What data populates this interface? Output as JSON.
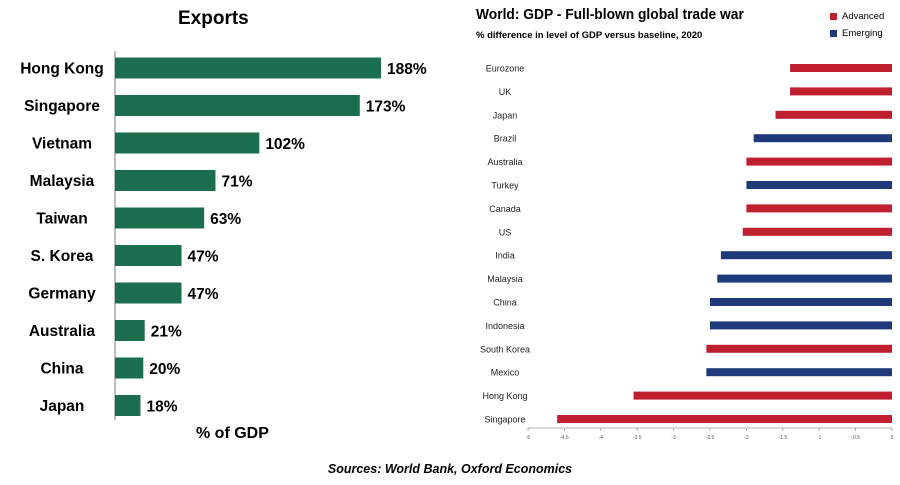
{
  "chart_data": [
    {
      "type": "bar",
      "orientation": "horizontal",
      "title": "Exports",
      "xlabel": "% of GDP",
      "ylabel": "",
      "categories": [
        "Hong Kong",
        "Singapore",
        "Vietnam",
        "Malaysia",
        "Taiwan",
        "S. Korea",
        "Germany",
        "Australia",
        "China",
        "Japan"
      ],
      "values": [
        188,
        173,
        102,
        71,
        63,
        47,
        47,
        21,
        20,
        18
      ],
      "value_labels": [
        "188%",
        "173%",
        "102%",
        "71%",
        "63%",
        "47%",
        "47%",
        "21%",
        "20%",
        "18%"
      ],
      "color": "#1a6e4e",
      "grid": false
    },
    {
      "type": "bar",
      "orientation": "horizontal",
      "title": "World: GDP - Full-blown global trade war",
      "subtitle": "% difference in level of GDP versus baseline, 2020",
      "xlabel": "",
      "ylabel": "",
      "categories": [
        "Eurozone",
        "UK",
        "Japan",
        "Brazil",
        "Australia",
        "Turkey",
        "Canada",
        "US",
        "India",
        "Malaysia",
        "China",
        "Indonesia",
        "South Korea",
        "Mexico",
        "Hong Kong",
        "Singapore"
      ],
      "values": [
        -1.4,
        -1.4,
        -1.6,
        -1.9,
        -2.0,
        -2.0,
        -2.0,
        -2.05,
        -2.35,
        -2.4,
        -2.5,
        -2.5,
        -2.55,
        -2.55,
        -3.55,
        -4.6
      ],
      "groups": [
        "Advanced",
        "Advanced",
        "Advanced",
        "Emerging",
        "Advanced",
        "Emerging",
        "Advanced",
        "Advanced",
        "Emerging",
        "Emerging",
        "Emerging",
        "Emerging",
        "Advanced",
        "Emerging",
        "Advanced",
        "Advanced"
      ],
      "legend": [
        {
          "name": "Advanced",
          "color": "#c01f2f"
        },
        {
          "name": "Emerging",
          "color": "#1f3a7a"
        }
      ],
      "legend_position": "top-right",
      "xlim": [
        -5,
        0
      ],
      "xticks": [
        -5,
        -4.5,
        -4,
        -3.5,
        -3,
        -2.5,
        -2,
        -1.5,
        -1,
        -0.5,
        0
      ],
      "grid": false
    }
  ],
  "footer": {
    "source": "Sources: World Bank, Oxford Economics"
  }
}
